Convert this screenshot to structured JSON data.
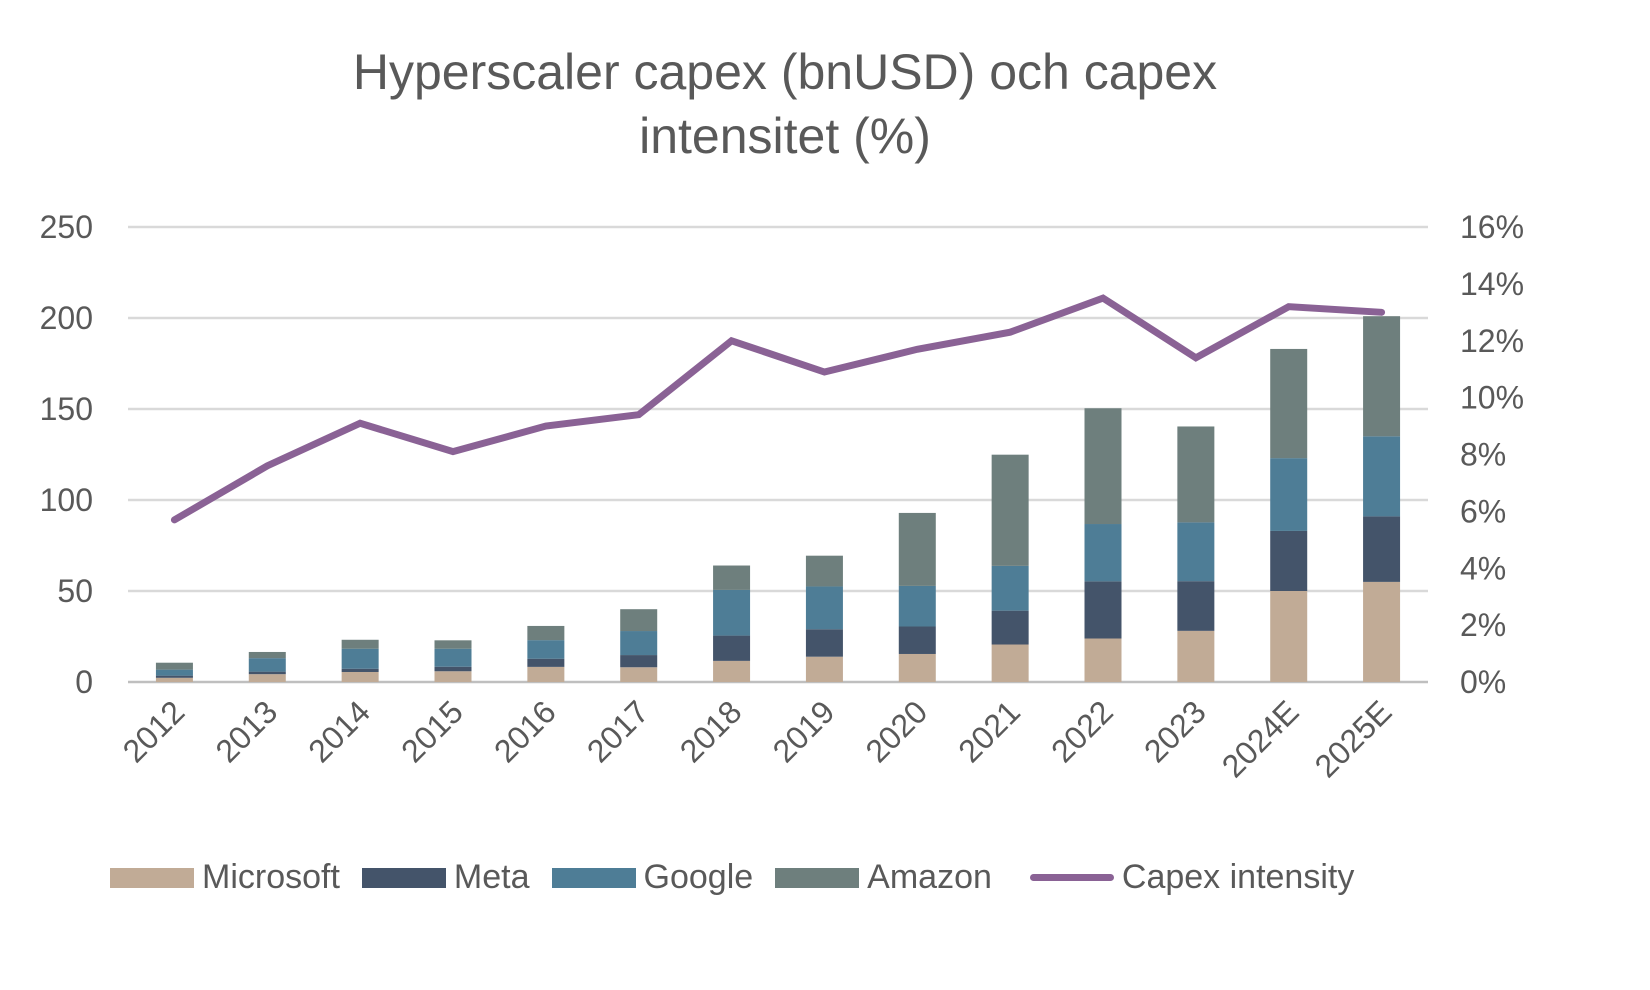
{
  "chart_data": {
    "type": "bar",
    "stacked": true,
    "title_line1": "Hyperscaler capex (bnUSD) och capex",
    "title_line2": "intensitet (%)",
    "categories": [
      "2012",
      "2013",
      "2014",
      "2015",
      "2016",
      "2017",
      "2018",
      "2019",
      "2020",
      "2021",
      "2022",
      "2023",
      "2024E",
      "2025E"
    ],
    "series": [
      {
        "name": "Microsoft",
        "type": "bar",
        "color": "#c1ab96",
        "values": [
          2.3,
          4.3,
          5.5,
          5.9,
          8.3,
          8.1,
          11.6,
          13.9,
          15.4,
          20.6,
          23.9,
          28.1,
          50,
          55
        ]
      },
      {
        "name": "Meta",
        "type": "bar",
        "color": "#44546a",
        "values": [
          1.2,
          1.4,
          1.8,
          2.5,
          4.5,
          6.7,
          13.9,
          15.1,
          15.1,
          18.6,
          31.4,
          27.3,
          33,
          36
        ]
      },
      {
        "name": "Google",
        "type": "bar",
        "color": "#4e7d96",
        "values": [
          3.3,
          7.4,
          11.0,
          9.9,
          10.2,
          13.2,
          25.1,
          23.5,
          22.3,
          24.6,
          31.5,
          32.3,
          40,
          44
        ]
      },
      {
        "name": "Amazon",
        "type": "bar",
        "color": "#6e7f7d",
        "values": [
          3.8,
          3.4,
          4.9,
          4.6,
          7.8,
          12.0,
          13.4,
          16.9,
          40.1,
          61.1,
          63.6,
          52.7,
          60,
          66
        ]
      },
      {
        "name": "Capex intensity",
        "type": "line",
        "axis": "right",
        "color": "#8a6295",
        "values": [
          5.7,
          7.6,
          9.1,
          8.1,
          9.0,
          9.4,
          12.0,
          10.9,
          11.7,
          12.3,
          13.5,
          11.4,
          13.2,
          13.0
        ]
      }
    ],
    "y_left": {
      "min": 0,
      "max": 250,
      "ticks": [
        "0",
        "50",
        "100",
        "150",
        "200",
        "250"
      ]
    },
    "y_right": {
      "min": 0,
      "max": 16,
      "ticks": [
        "0%",
        "2%",
        "4%",
        "6%",
        "8%",
        "10%",
        "12%",
        "14%",
        "16%"
      ]
    },
    "grid": true,
    "legend_position": "bottom"
  }
}
